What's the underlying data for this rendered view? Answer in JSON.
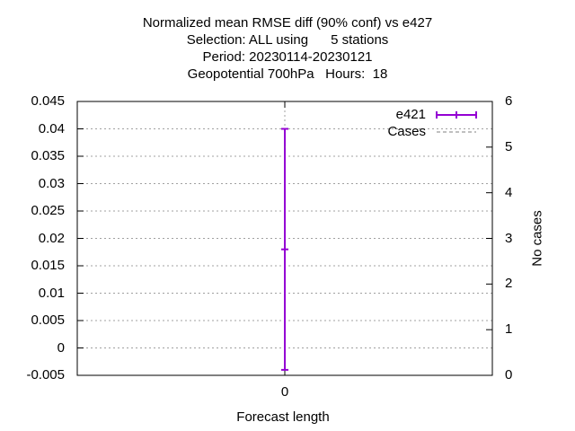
{
  "chart_data": {
    "type": "line",
    "title_lines": [
      "Normalized mean RMSE diff (90% conf) vs e427",
      "Selection: ALL using      5 stations",
      "Period: 20230114-20230121",
      "Geopotential 700hPa   Hours:  18"
    ],
    "xlabel": "Forecast length",
    "ylabel": "",
    "y2label": "No cases",
    "x_ticks": [
      "0"
    ],
    "y_ticks": [
      "-0.005",
      "0",
      "0.005",
      "0.01",
      "0.015",
      "0.02",
      "0.025",
      "0.03",
      "0.035",
      "0.04",
      "0.045"
    ],
    "y2_ticks": [
      "0",
      "1",
      "2",
      "3",
      "4",
      "5",
      "6"
    ],
    "ylim": [
      -0.005,
      0.045
    ],
    "y2lim": [
      0,
      6
    ],
    "xlim": [
      -1,
      1
    ],
    "grid": true,
    "legend_position": "top-right",
    "series": [
      {
        "name": "e421",
        "color": "#9400d3",
        "x": [
          0
        ],
        "y": [
          0.018
        ],
        "err_low": [
          -0.004
        ],
        "err_high": [
          0.04
        ]
      },
      {
        "name": "Cases",
        "color": "#808080",
        "x": [
          0
        ],
        "y": [
          5
        ]
      }
    ]
  }
}
